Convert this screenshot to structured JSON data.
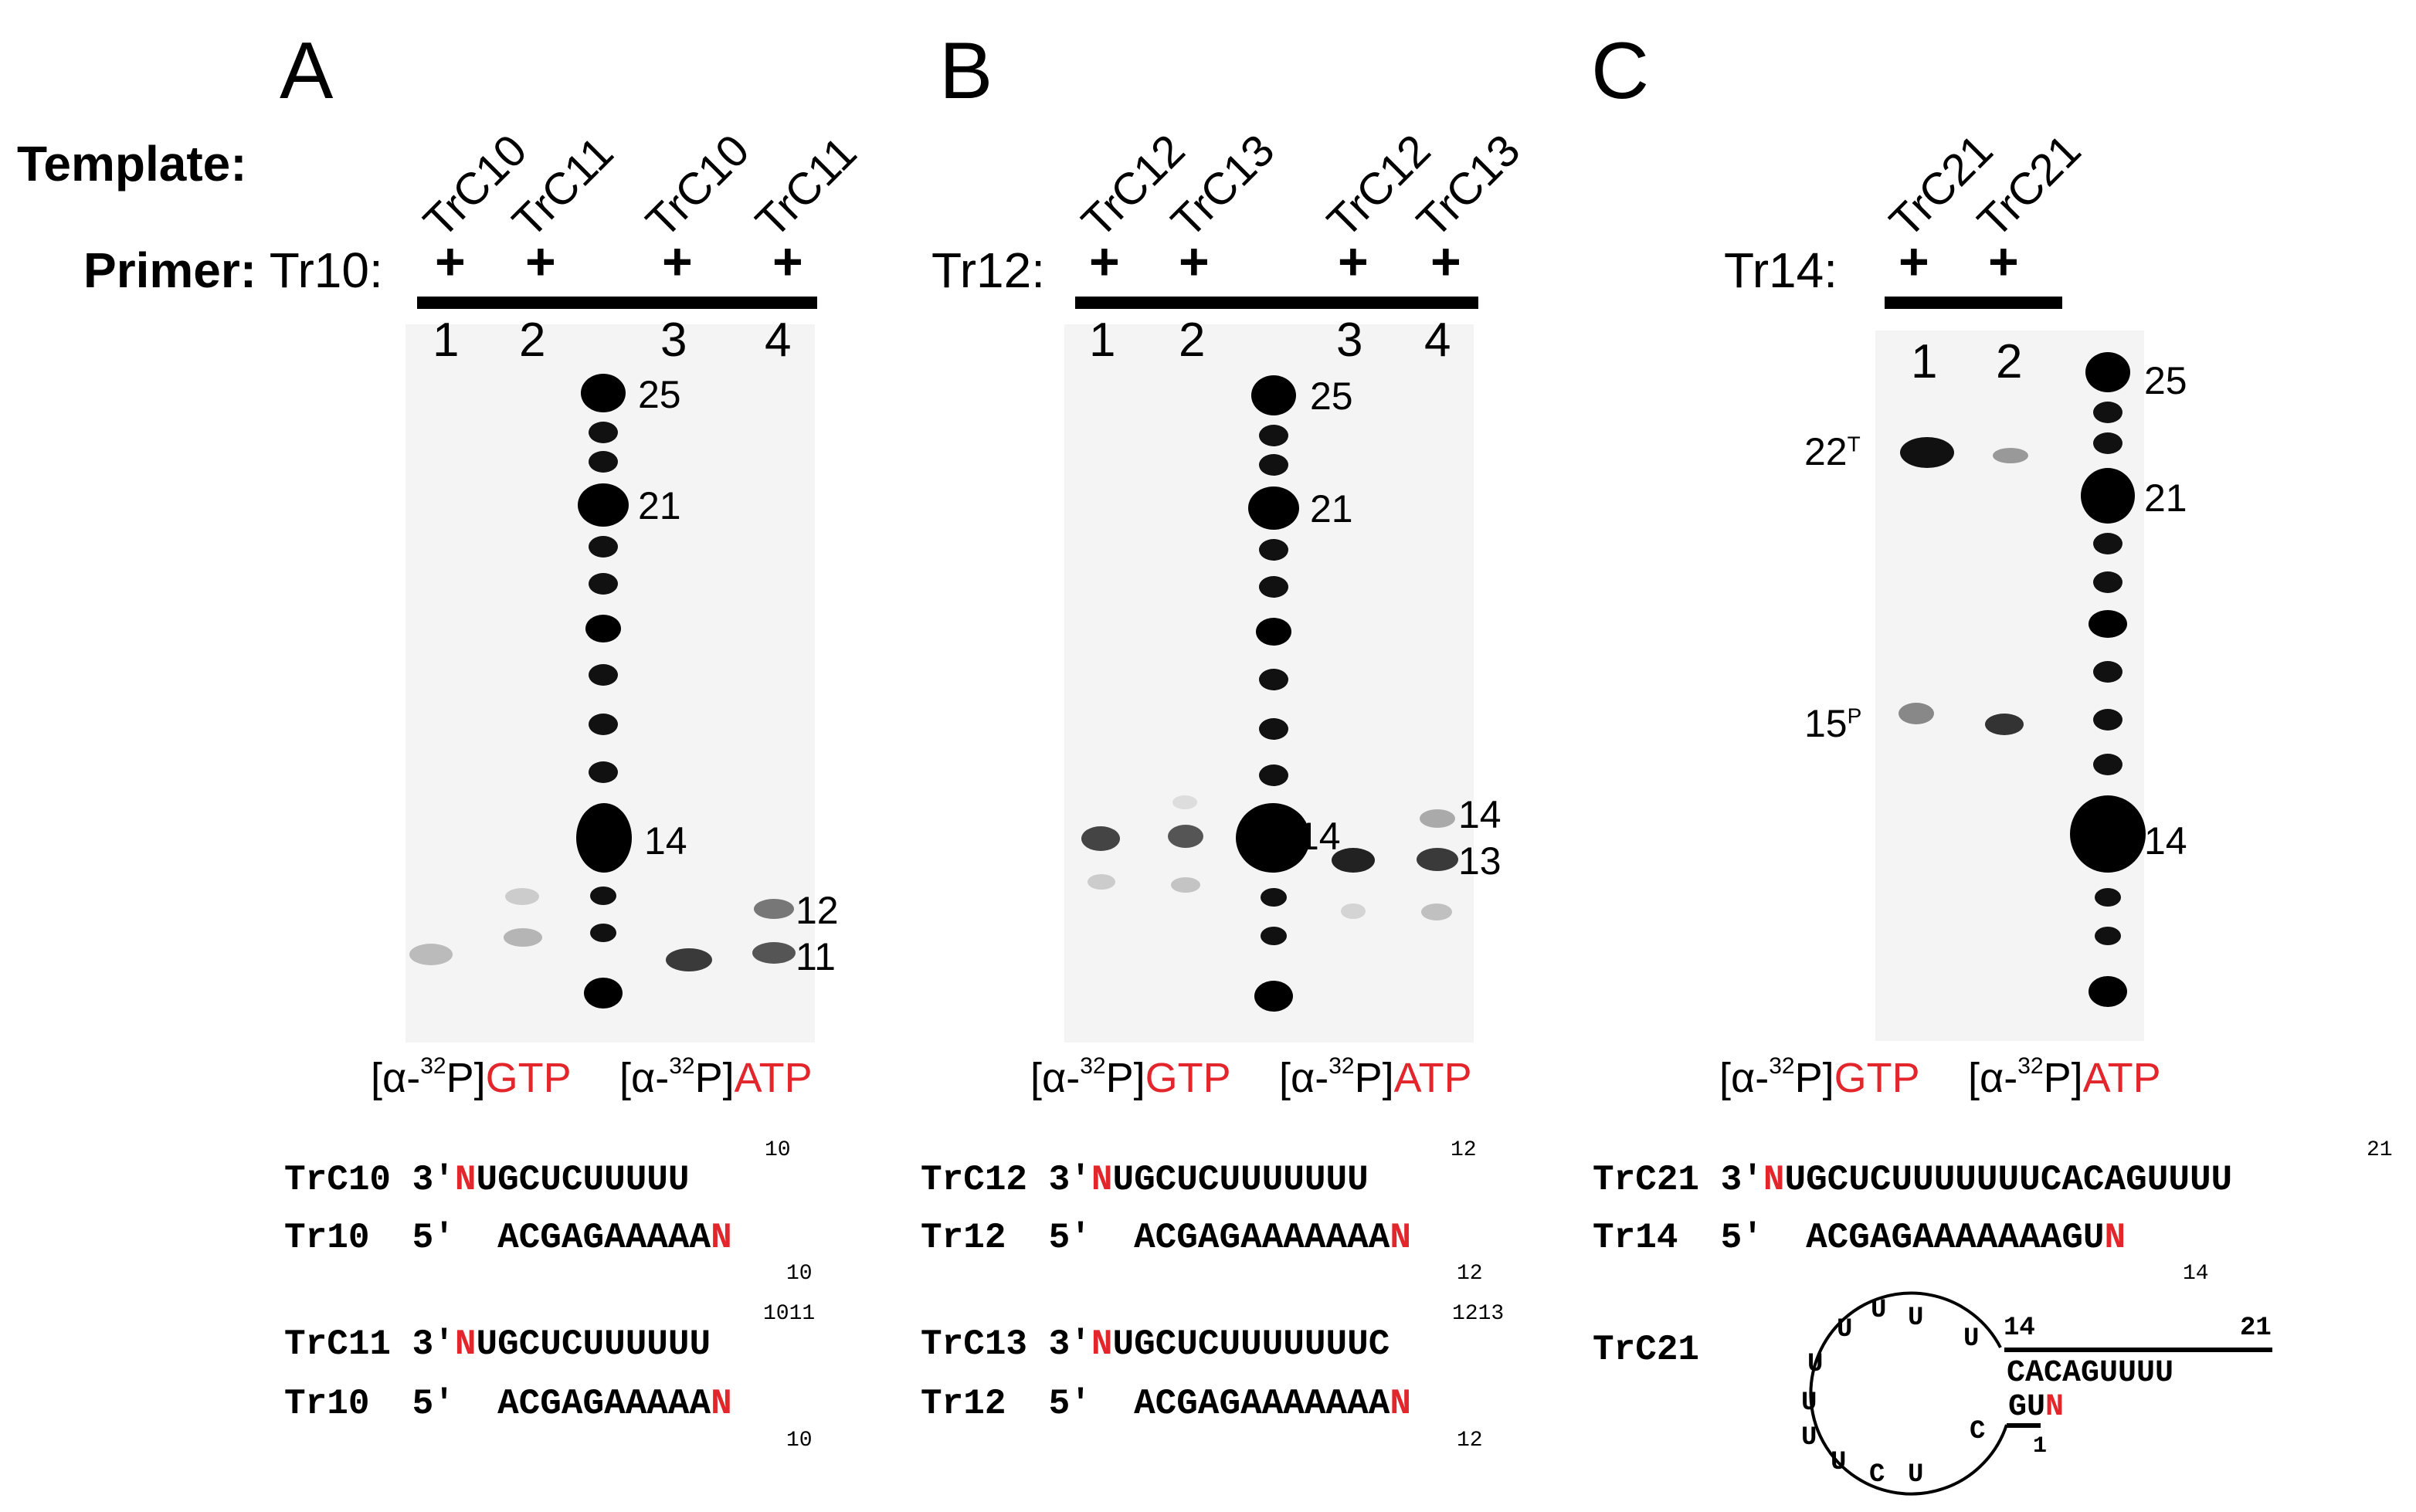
{
  "panels": {
    "A": {
      "letter": "A",
      "template_label": "Template:",
      "primer_label": "Primer:",
      "primer_name": "Tr10:",
      "lane_templates": [
        "TrC10",
        "TrC11",
        "TrC10",
        "TrC11"
      ],
      "plus": [
        "+",
        "+",
        "+",
        "+"
      ],
      "lane_numbers": [
        "1",
        "2",
        "3",
        "4"
      ],
      "markers": [
        "25",
        "21",
        "14",
        "12",
        "11"
      ],
      "isotope_gtp_prefix": "[α-",
      "isotope_gtp_sup": "32",
      "isotope_gtp_mid": "P]",
      "isotope_gtp": "GTP",
      "isotope_atp_prefix": "[α-",
      "isotope_atp_sup": "32",
      "isotope_atp_mid": "P]",
      "isotope_atp": "ATP",
      "seqs": [
        {
          "name": "TrC10",
          "end": "3′",
          "n": "N",
          "seq": "UGCUCUUUUU",
          "num": "10"
        },
        {
          "name": "Tr10",
          "end": "5′",
          "seq": "ACGAGAAAAA",
          "n": "N",
          "num": "10"
        },
        {
          "name": "TrC11",
          "end": "3′",
          "n": "N",
          "seq": "UGCUCUUUUUU",
          "num": "1011"
        },
        {
          "name": "Tr10",
          "end": "5′",
          "seq": "ACGAGAAAAA",
          "n": "N",
          "num": "10"
        }
      ]
    },
    "B": {
      "letter": "B",
      "primer_name": "Tr12:",
      "lane_templates": [
        "TrC12",
        "TrC13",
        "TrC12",
        "TrC13"
      ],
      "plus": [
        "+",
        "+",
        "+",
        "+"
      ],
      "lane_numbers": [
        "1",
        "2",
        "3",
        "4"
      ],
      "markers": [
        "25",
        "21",
        "14",
        "14",
        "13"
      ],
      "isotope_gtp_prefix": "[α-",
      "isotope_gtp_sup": "32",
      "isotope_gtp_mid": "P]",
      "isotope_gtp": "GTP",
      "isotope_atp_prefix": "[α-",
      "isotope_atp_sup": "32",
      "isotope_atp_mid": "P]",
      "isotope_atp": "ATP",
      "seqs": [
        {
          "name": "TrC12",
          "end": "3′",
          "n": "N",
          "seq": "UGCUCUUUUUUU",
          "num": "12"
        },
        {
          "name": "Tr12",
          "end": "5′",
          "seq": "ACGAGAAAAAAA",
          "n": "N",
          "num": "12"
        },
        {
          "name": "TrC13",
          "end": "3′",
          "n": "N",
          "seq": "UGCUCUUUUUUUC",
          "num": "1213"
        },
        {
          "name": "Tr12",
          "end": "5′",
          "seq": "ACGAGAAAAAAA",
          "n": "N",
          "num": "12"
        }
      ]
    },
    "C": {
      "letter": "C",
      "primer_name": "Tr14:",
      "lane_templates": [
        "TrC21",
        "TrC21"
      ],
      "plus": [
        "+",
        "+"
      ],
      "lane_numbers": [
        "1",
        "2"
      ],
      "product_labels": {
        "p22": "22",
        "p22_sup": "T",
        "p15": "15",
        "p15_sup": "P"
      },
      "markers": [
        "25",
        "21",
        "14"
      ],
      "isotope_gtp_prefix": "[α-",
      "isotope_gtp_sup": "32",
      "isotope_gtp_mid": "P]",
      "isotope_gtp": "GTP",
      "isotope_atp_prefix": "[α-",
      "isotope_atp_sup": "32",
      "isotope_atp_mid": "P]",
      "isotope_atp": "ATP",
      "seqs": [
        {
          "name": "TrC21",
          "end": "3′",
          "n": "N",
          "seq": "UGCUCUUUUUUUCACAGUUUU",
          "num": "21"
        },
        {
          "name": "Tr14",
          "end": "5′",
          "seq": "ACGAGAAAAAAAGU",
          "n": "N",
          "num": "14"
        }
      ],
      "hairpin": {
        "name": "TrC21",
        "loop_letters": [
          "U",
          "U",
          "U",
          "U",
          "U",
          "U",
          "U",
          "C",
          "U",
          "C"
        ],
        "top_strand": "CACAGUUUU",
        "bottom_strand": "GU",
        "n": "N",
        "num_14": "14",
        "num_21": "21",
        "num_1": "1"
      }
    }
  },
  "colors": {
    "red": "#e3262c",
    "black": "#000000"
  }
}
